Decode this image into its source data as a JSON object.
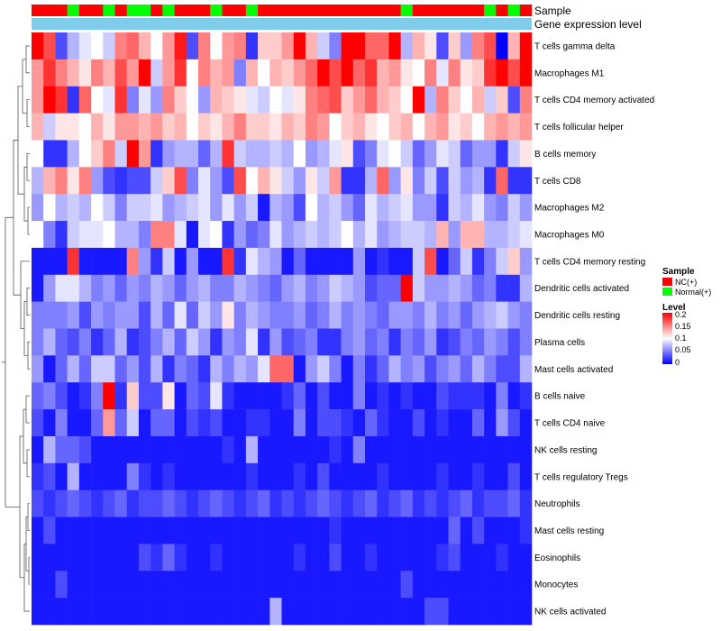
{
  "chart_data": {
    "type": "heatmap",
    "annotation_labels": [
      "Sample",
      "Gene expression level"
    ],
    "rows": [
      "T cells gamma delta",
      "Macrophages M1",
      "T cells CD4 memory activated",
      "T cells follicular helper",
      "B cells memory",
      "T cells CD8",
      "Macrophages M2",
      "Macrophages M0",
      "T cells CD4 memory resting",
      "Dendritic cells activated",
      "Dendritic cells resting",
      "Plasma cells",
      "Mast cells activated",
      "B cells naive",
      "T cells CD4 naive",
      "NK cells resting",
      "T cells regulatory  Tregs",
      "Neutrophils",
      "Mast cells resting",
      "Eosinophils",
      "Monocytes",
      "NK cells activated"
    ],
    "sample_groups": [
      "NC",
      "NC",
      "NC",
      "Normal",
      "NC",
      "NC",
      "Normal",
      "NC",
      "Normal",
      "Normal",
      "NC",
      "Normal",
      "NC",
      "NC",
      "NC",
      "Normal",
      "NC",
      "NC",
      "Normal",
      "NC",
      "NC",
      "NC",
      "NC",
      "NC",
      "NC",
      "NC",
      "NC",
      "NC",
      "NC",
      "NC",
      "NC",
      "Normal",
      "NC",
      "NC",
      "NC",
      "NC",
      "NC",
      "NC",
      "Normal",
      "NC",
      "Normal",
      "NC"
    ],
    "gene_expression_level_color": "#7fcdea",
    "legend": {
      "sample": {
        "title": "Sample",
        "items": [
          {
            "label": "NC(+)",
            "color": "#ff0000"
          },
          {
            "label": "Normal(+)",
            "color": "#00ff00"
          }
        ]
      },
      "level": {
        "title": "Level",
        "ticks": [
          "0.2",
          "0.15",
          "0.1",
          "0.05",
          "0"
        ],
        "colors": [
          "#ff0000",
          "#ffffff",
          "#0000ff"
        ]
      }
    },
    "values": [
      [
        0.2,
        0.17,
        0.03,
        0.07,
        0.09,
        0.1,
        0.08,
        0.15,
        0.16,
        0.13,
        0.1,
        0.14,
        0.19,
        0.03,
        0.15,
        0.1,
        0.14,
        0.15,
        0.02,
        0.12,
        0.12,
        0.14,
        0.2,
        0.13,
        0.08,
        0.05,
        0.2,
        0.2,
        0.16,
        0.16,
        0.2,
        0.07,
        0.13,
        0.11,
        0.03,
        0.12,
        0.06,
        0.15,
        0.17,
        0.0,
        0.13,
        0.2
      ],
      [
        0.14,
        0.18,
        0.15,
        0.13,
        0.11,
        0.15,
        0.13,
        0.17,
        0.14,
        0.2,
        0.08,
        0.14,
        0.18,
        0.1,
        0.15,
        0.13,
        0.14,
        0.05,
        0.13,
        0.1,
        0.13,
        0.12,
        0.14,
        0.16,
        0.2,
        0.17,
        0.2,
        0.16,
        0.18,
        0.13,
        0.14,
        0.11,
        0.1,
        0.15,
        0.09,
        0.15,
        0.11,
        0.12,
        0.18,
        0.2,
        0.17,
        0.2
      ],
      [
        0.14,
        0.2,
        0.18,
        0.02,
        0.16,
        0.1,
        0.09,
        0.18,
        0.05,
        0.09,
        0.06,
        0.15,
        0.12,
        0.1,
        0.06,
        0.13,
        0.12,
        0.11,
        0.09,
        0.08,
        0.1,
        0.09,
        0.11,
        0.15,
        0.16,
        0.17,
        0.12,
        0.14,
        0.16,
        0.13,
        0.12,
        0.1,
        0.2,
        0.07,
        0.15,
        0.12,
        0.1,
        0.13,
        0.08,
        0.12,
        0.03,
        0.15
      ],
      [
        0.13,
        0.08,
        0.11,
        0.11,
        0.1,
        0.13,
        0.11,
        0.14,
        0.14,
        0.13,
        0.14,
        0.12,
        0.13,
        0.1,
        0.12,
        0.11,
        0.13,
        0.15,
        0.12,
        0.12,
        0.11,
        0.13,
        0.12,
        0.15,
        0.14,
        0.1,
        0.12,
        0.13,
        0.11,
        0.1,
        0.12,
        0.13,
        0.1,
        0.13,
        0.14,
        0.11,
        0.12,
        0.1,
        0.13,
        0.14,
        0.13,
        0.14
      ],
      [
        0.1,
        0.02,
        0.02,
        0.07,
        0.1,
        0.12,
        0.15,
        0.08,
        0.2,
        0.14,
        0.02,
        0.06,
        0.07,
        0.07,
        0.04,
        0.07,
        0.18,
        0.08,
        0.07,
        0.07,
        0.08,
        0.07,
        0.1,
        0.06,
        0.07,
        0.09,
        0.11,
        0.03,
        0.05,
        0.09,
        0.1,
        0.08,
        0.04,
        0.06,
        0.09,
        0.08,
        0.04,
        0.06,
        0.06,
        0.02,
        0.08,
        0.11
      ],
      [
        0.07,
        0.13,
        0.15,
        0.11,
        0.15,
        0.06,
        0.03,
        0.02,
        0.03,
        0.03,
        0.08,
        0.12,
        0.17,
        0.05,
        0.09,
        0.06,
        0.03,
        0.17,
        0.1,
        0.13,
        0.11,
        0.08,
        0.06,
        0.11,
        0.08,
        0.14,
        0.02,
        0.02,
        0.07,
        0.16,
        0.06,
        0.11,
        0.05,
        0.08,
        0.03,
        0.08,
        0.06,
        0.07,
        0.02,
        0.16,
        0.02,
        0.02
      ],
      [
        0.06,
        0.1,
        0.07,
        0.08,
        0.07,
        0.1,
        0.08,
        0.05,
        0.08,
        0.08,
        0.09,
        0.06,
        0.07,
        0.08,
        0.09,
        0.06,
        0.09,
        0.06,
        0.08,
        0.01,
        0.07,
        0.06,
        0.03,
        0.1,
        0.07,
        0.08,
        0.06,
        0.04,
        0.09,
        0.07,
        0.08,
        0.09,
        0.06,
        0.06,
        0.02,
        0.08,
        0.07,
        0.09,
        0.06,
        0.05,
        0.08,
        0.06
      ],
      [
        0.1,
        0.05,
        0.02,
        0.08,
        0.09,
        0.09,
        0.1,
        0.07,
        0.07,
        0.05,
        0.15,
        0.15,
        0.09,
        0.01,
        0.09,
        0.1,
        0.02,
        0.06,
        0.04,
        0.05,
        0.09,
        0.06,
        0.07,
        0.08,
        0.07,
        0.08,
        0.1,
        0.07,
        0.09,
        0.06,
        0.07,
        0.08,
        0.08,
        0.07,
        0.13,
        0.06,
        0.13,
        0.13,
        0.07,
        0.07,
        0.08,
        0.09
      ],
      [
        0.01,
        0.01,
        0.01,
        0.18,
        0.01,
        0.01,
        0.01,
        0.01,
        0.15,
        0.06,
        0.02,
        0.08,
        0.01,
        0.06,
        0.01,
        0.01,
        0.18,
        0.02,
        0.09,
        0.07,
        0.06,
        0.01,
        0.04,
        0.01,
        0.01,
        0.01,
        0.01,
        0.06,
        0.01,
        0.02,
        0.01,
        0.01,
        0.08,
        0.17,
        0.01,
        0.04,
        0.08,
        0.02,
        0.05,
        0.08,
        0.12,
        0.06
      ],
      [
        0.01,
        0.06,
        0.09,
        0.09,
        0.07,
        0.05,
        0.06,
        0.04,
        0.06,
        0.05,
        0.07,
        0.06,
        0.04,
        0.06,
        0.07,
        0.05,
        0.05,
        0.07,
        0.06,
        0.05,
        0.04,
        0.06,
        0.07,
        0.05,
        0.06,
        0.08,
        0.07,
        0.06,
        0.03,
        0.04,
        0.04,
        0.2,
        0.08,
        0.06,
        0.06,
        0.07,
        0.06,
        0.04,
        0.05,
        0.02,
        0.02,
        0.07
      ],
      [
        0.05,
        0.05,
        0.05,
        0.06,
        0.03,
        0.06,
        0.05,
        0.06,
        0.06,
        0.03,
        0.07,
        0.04,
        0.09,
        0.04,
        0.08,
        0.06,
        0.11,
        0.05,
        0.07,
        0.06,
        0.05,
        0.05,
        0.06,
        0.04,
        0.05,
        0.07,
        0.05,
        0.06,
        0.05,
        0.04,
        0.06,
        0.06,
        0.05,
        0.07,
        0.05,
        0.06,
        0.04,
        0.06,
        0.07,
        0.08,
        0.06,
        0.05
      ],
      [
        0.05,
        0.07,
        0.04,
        0.03,
        0.05,
        0.02,
        0.04,
        0.07,
        0.02,
        0.03,
        0.05,
        0.07,
        0.04,
        0.08,
        0.06,
        0.02,
        0.06,
        0.05,
        0.09,
        0.02,
        0.06,
        0.03,
        0.04,
        0.05,
        0.02,
        0.02,
        0.05,
        0.06,
        0.04,
        0.05,
        0.02,
        0.05,
        0.04,
        0.06,
        0.02,
        0.03,
        0.05,
        0.04,
        0.06,
        0.05,
        0.03,
        0.05
      ],
      [
        0.06,
        0.01,
        0.04,
        0.07,
        0.04,
        0.08,
        0.08,
        0.04,
        0.06,
        0.03,
        0.07,
        0.02,
        0.05,
        0.04,
        0.02,
        0.07,
        0.05,
        0.07,
        0.06,
        0.09,
        0.16,
        0.16,
        0.01,
        0.06,
        0.08,
        0.05,
        0.01,
        0.05,
        0.02,
        0.04,
        0.07,
        0.05,
        0.06,
        0.03,
        0.05,
        0.06,
        0.04,
        0.07,
        0.05,
        0.03,
        0.03,
        0.07
      ],
      [
        0.04,
        0.05,
        0.03,
        0.01,
        0.02,
        0.05,
        0.2,
        0.02,
        0.12,
        0.03,
        0.03,
        0.11,
        0.01,
        0.04,
        0.03,
        0.09,
        0.02,
        0.01,
        0.01,
        0.01,
        0.01,
        0.02,
        0.04,
        0.01,
        0.03,
        0.01,
        0.01,
        0.05,
        0.01,
        0.02,
        0.01,
        0.02,
        0.01,
        0.01,
        0.03,
        0.02,
        0.02,
        0.02,
        0.01,
        0.05,
        0.01,
        0.02
      ],
      [
        0.03,
        0.01,
        0.05,
        0.01,
        0.01,
        0.04,
        0.14,
        0.04,
        0.08,
        0.01,
        0.04,
        0.04,
        0.01,
        0.03,
        0.02,
        0.03,
        0.01,
        0.01,
        0.02,
        0.02,
        0.01,
        0.01,
        0.05,
        0.01,
        0.03,
        0.03,
        0.02,
        0.01,
        0.04,
        0.02,
        0.01,
        0.01,
        0.03,
        0.01,
        0.02,
        0.01,
        0.01,
        0.04,
        0.01,
        0.06,
        0.03,
        0.01
      ],
      [
        0.01,
        0.07,
        0.04,
        0.04,
        0.03,
        0.01,
        0.01,
        0.01,
        0.01,
        0.01,
        0.01,
        0.01,
        0.01,
        0.01,
        0.01,
        0.01,
        0.02,
        0.01,
        0.07,
        0.01,
        0.01,
        0.01,
        0.01,
        0.01,
        0.01,
        0.02,
        0.01,
        0.05,
        0.01,
        0.01,
        0.01,
        0.01,
        0.01,
        0.01,
        0.01,
        0.01,
        0.01,
        0.01,
        0.01,
        0.01,
        0.01,
        0.01
      ],
      [
        0.02,
        0.03,
        0.01,
        0.07,
        0.01,
        0.01,
        0.01,
        0.01,
        0.05,
        0.02,
        0.01,
        0.02,
        0.01,
        0.01,
        0.01,
        0.01,
        0.01,
        0.01,
        0.02,
        0.01,
        0.01,
        0.01,
        0.02,
        0.01,
        0.03,
        0.01,
        0.01,
        0.01,
        0.01,
        0.02,
        0.01,
        0.01,
        0.01,
        0.01,
        0.02,
        0.01,
        0.01,
        0.02,
        0.01,
        0.01,
        0.03,
        0.01
      ],
      [
        0.03,
        0.02,
        0.03,
        0.04,
        0.03,
        0.02,
        0.03,
        0.04,
        0.02,
        0.03,
        0.03,
        0.04,
        0.03,
        0.02,
        0.03,
        0.04,
        0.03,
        0.02,
        0.03,
        0.04,
        0.02,
        0.03,
        0.02,
        0.03,
        0.04,
        0.03,
        0.02,
        0.03,
        0.04,
        0.02,
        0.03,
        0.04,
        0.02,
        0.03,
        0.02,
        0.03,
        0.04,
        0.02,
        0.03,
        0.03,
        0.04,
        0.02
      ],
      [
        0.01,
        0.03,
        0.01,
        0.01,
        0.01,
        0.01,
        0.01,
        0.01,
        0.01,
        0.01,
        0.01,
        0.01,
        0.01,
        0.01,
        0.01,
        0.01,
        0.01,
        0.01,
        0.01,
        0.01,
        0.01,
        0.01,
        0.01,
        0.01,
        0.01,
        0.02,
        0.01,
        0.01,
        0.01,
        0.01,
        0.01,
        0.01,
        0.01,
        0.01,
        0.01,
        0.04,
        0.01,
        0.03,
        0.01,
        0.01,
        0.01,
        0.02
      ],
      [
        0.01,
        0.01,
        0.01,
        0.01,
        0.01,
        0.01,
        0.01,
        0.01,
        0.01,
        0.03,
        0.02,
        0.04,
        0.02,
        0.01,
        0.01,
        0.02,
        0.01,
        0.01,
        0.01,
        0.01,
        0.01,
        0.01,
        0.02,
        0.01,
        0.01,
        0.03,
        0.01,
        0.01,
        0.02,
        0.01,
        0.01,
        0.01,
        0.01,
        0.01,
        0.02,
        0.03,
        0.01,
        0.01,
        0.01,
        0.02,
        0.01,
        0.01
      ],
      [
        0.01,
        0.01,
        0.03,
        0.01,
        0.01,
        0.01,
        0.01,
        0.01,
        0.01,
        0.01,
        0.01,
        0.01,
        0.01,
        0.01,
        0.01,
        0.01,
        0.01,
        0.01,
        0.01,
        0.01,
        0.01,
        0.01,
        0.01,
        0.01,
        0.01,
        0.01,
        0.01,
        0.01,
        0.01,
        0.01,
        0.01,
        0.03,
        0.01,
        0.01,
        0.01,
        0.01,
        0.01,
        0.01,
        0.01,
        0.01,
        0.01,
        0.01
      ],
      [
        0.01,
        0.01,
        0.01,
        0.01,
        0.01,
        0.01,
        0.01,
        0.01,
        0.01,
        0.01,
        0.01,
        0.01,
        0.01,
        0.01,
        0.01,
        0.01,
        0.01,
        0.01,
        0.01,
        0.01,
        0.07,
        0.01,
        0.01,
        0.01,
        0.01,
        0.01,
        0.01,
        0.01,
        0.01,
        0.01,
        0.01,
        0.01,
        0.01,
        0.03,
        0.03,
        0.01,
        0.01,
        0.01,
        0.01,
        0.01,
        0.01,
        0.01
      ]
    ]
  }
}
